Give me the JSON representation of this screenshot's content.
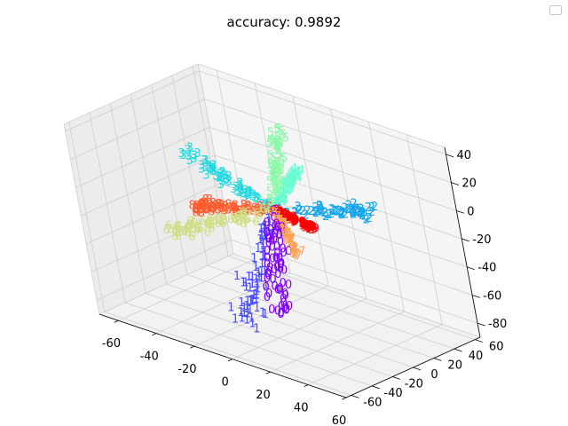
{
  "chart_data": {
    "type": "scatter",
    "projection": "3d",
    "title": "accuracy: 0.9892",
    "grid": true,
    "legend": "top-right",
    "axes": {
      "x": {
        "ticks": [
          -60,
          -40,
          -20,
          0,
          20,
          40,
          60
        ],
        "range": [
          -70,
          60
        ]
      },
      "y": {
        "ticks": [
          -60,
          -40,
          -20,
          0,
          20,
          40,
          60
        ],
        "range": [
          -65,
          65
        ]
      },
      "z": {
        "ticks": [
          -80,
          -60,
          -40,
          -20,
          0,
          20,
          40
        ],
        "range": [
          -90,
          45
        ]
      }
    },
    "series": [
      {
        "label": "0",
        "color": "#8000ff",
        "direction": [
          27,
          -54,
          -44
        ]
      },
      {
        "label": "1",
        "color": "#4b4dff",
        "direction": [
          -14,
          -22,
          -78
        ]
      },
      {
        "label": "2",
        "color": "#12a5ec",
        "direction": [
          38,
          28,
          7
        ]
      },
      {
        "label": "3",
        "color": "#21d9e0",
        "direction": [
          -62,
          26,
          4
        ]
      },
      {
        "label": "4",
        "color": "#69fcd2",
        "direction": [
          2,
          22,
          22
        ]
      },
      {
        "label": "5",
        "color": "#8bf9a8",
        "direction": [
          -4,
          24,
          47
        ]
      },
      {
        "label": "6",
        "color": "#cfdf86",
        "direction": [
          -48,
          -22,
          -30
        ]
      },
      {
        "label": "7",
        "color": "#ffa256",
        "direction": [
          18,
          -16,
          -20
        ]
      },
      {
        "label": "8",
        "color": "#ff5d2f",
        "direction": [
          -44,
          -3,
          -17
        ]
      },
      {
        "label": "9",
        "color": "#ff0000",
        "direction": [
          22,
          -4,
          -2
        ]
      }
    ]
  }
}
